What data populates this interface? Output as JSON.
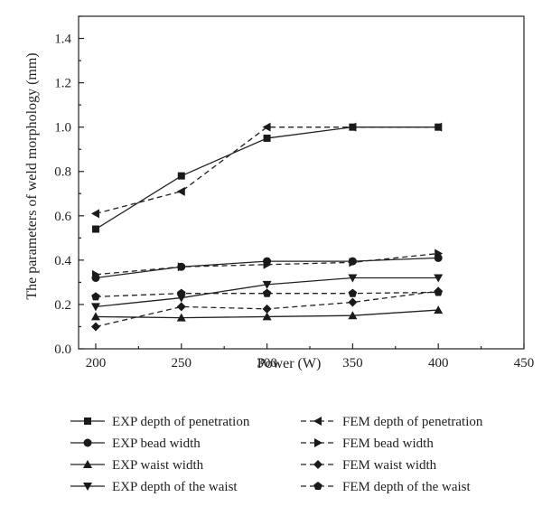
{
  "chart_data": {
    "type": "line",
    "title": "",
    "xlabel": "Power (W)",
    "ylabel": "The parameters of weld morphology (mm)",
    "xlim": [
      190,
      450
    ],
    "ylim": [
      0.0,
      1.5
    ],
    "x_ticks": [
      "200",
      "250",
      "300",
      "350",
      "400",
      "450"
    ],
    "y_ticks": [
      "0.0",
      "0.2",
      "0.4",
      "0.6",
      "0.8",
      "1.0",
      "1.2",
      "1.4"
    ],
    "grid": false,
    "legend_position": "bottom",
    "x": [
      200,
      250,
      300,
      350,
      400
    ],
    "series": [
      {
        "name": "EXP depth of penetration",
        "values": [
          0.54,
          0.78,
          0.95,
          1.0,
          1.0
        ],
        "marker": "square",
        "dash": "solid"
      },
      {
        "name": "FEM depth of penetration",
        "values": [
          0.61,
          0.71,
          1.0,
          1.0,
          1.0
        ],
        "marker": "triangle-left",
        "dash": "dashed"
      },
      {
        "name": "EXP bead width",
        "values": [
          0.32,
          0.37,
          0.395,
          0.395,
          0.41
        ],
        "marker": "circle",
        "dash": "solid"
      },
      {
        "name": "FEM bead width",
        "values": [
          0.335,
          0.37,
          0.38,
          0.39,
          0.43
        ],
        "marker": "triangle-right",
        "dash": "dashed"
      },
      {
        "name": "EXP waist width",
        "values": [
          0.145,
          0.14,
          0.145,
          0.15,
          0.175
        ],
        "marker": "triangle-up",
        "dash": "solid"
      },
      {
        "name": "FEM waist width",
        "values": [
          0.1,
          0.19,
          0.18,
          0.21,
          0.26
        ],
        "marker": "diamond",
        "dash": "dashed"
      },
      {
        "name": "EXP depth of the waist",
        "values": [
          0.19,
          0.23,
          0.29,
          0.32,
          0.32
        ],
        "marker": "triangle-down",
        "dash": "solid"
      },
      {
        "name": "FEM depth of the waist",
        "values": [
          0.235,
          0.25,
          0.25,
          0.25,
          0.255
        ],
        "marker": "pentagon",
        "dash": "dashed"
      }
    ],
    "legend_entries": [
      {
        "name": "EXP depth of penetration",
        "marker": "square",
        "dash": "solid"
      },
      {
        "name": "FEM depth of penetration",
        "marker": "triangle-left",
        "dash": "dashed"
      },
      {
        "name": "EXP bead width",
        "marker": "circle",
        "dash": "solid"
      },
      {
        "name": "FEM bead width",
        "marker": "triangle-right",
        "dash": "dashed"
      },
      {
        "name": "EXP waist width",
        "marker": "triangle-up",
        "dash": "solid"
      },
      {
        "name": "FEM waist width",
        "marker": "diamond",
        "dash": "dashed"
      },
      {
        "name": "EXP depth of the waist",
        "marker": "triangle-down",
        "dash": "solid"
      },
      {
        "name": "FEM depth of the waist",
        "marker": "pentagon",
        "dash": "dashed"
      }
    ],
    "colors": {
      "line": "#222222",
      "marker": "#1a1a1a",
      "background": "#ffffff"
    }
  }
}
